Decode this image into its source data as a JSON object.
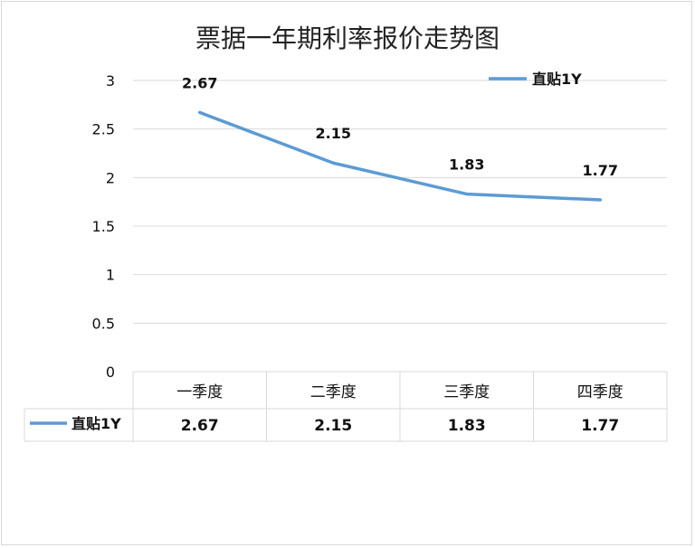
{
  "chart_data": {
    "type": "line",
    "title": "票据一年期利率报价走势图",
    "categories": [
      "一季度",
      "二季度",
      "三季度",
      "四季度"
    ],
    "series": [
      {
        "name": "直贴1Y",
        "values": [
          2.67,
          2.15,
          1.83,
          1.77
        ],
        "color": "#5b9bd5"
      }
    ],
    "y_ticks": [
      "0",
      "0.5",
      "1",
      "1.5",
      "2",
      "2.5",
      "3"
    ],
    "ylim": [
      0,
      3
    ],
    "data_labels": [
      "2.67",
      "2.15",
      "1.83",
      "1.77"
    ],
    "legend": {
      "label": "直贴1Y",
      "position": "top-right"
    },
    "data_table": {
      "headers": [
        "一季度",
        "二季度",
        "三季度",
        "四季度"
      ],
      "row_label": "直贴1Y",
      "values": [
        "2.67",
        "2.15",
        "1.83",
        "1.77"
      ]
    },
    "grid": true
  }
}
